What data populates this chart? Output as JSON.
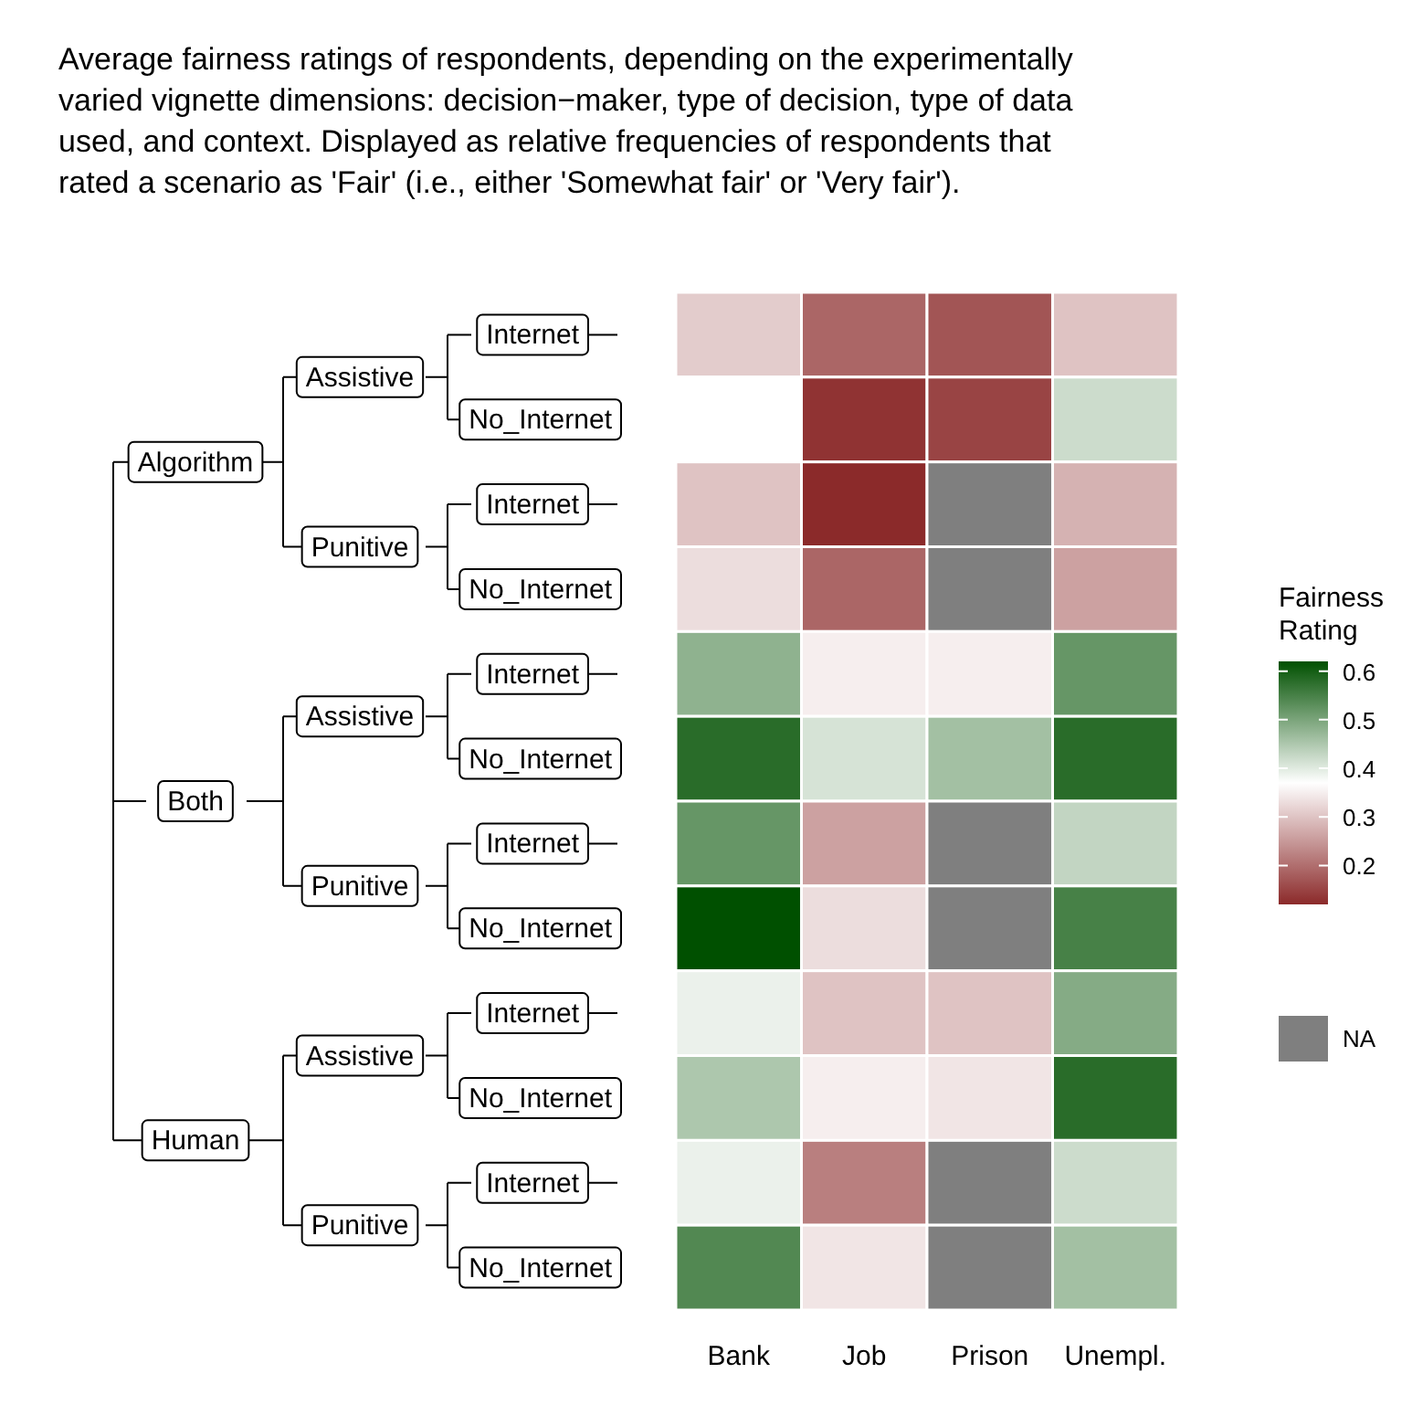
{
  "chart_data": {
    "type": "heatmap",
    "title": "Average fairness ratings of respondents, depending on the experimentally varied vignette dimensions: decision−maker, type of decision, type of data used, and context. Displayed as relative frequencies of respondents that rated a scenario as 'Fair' (i.e., either 'Somewhat fair' or 'Very fair').",
    "categories": [
      "Bank",
      "Job",
      "Prison",
      "Unempl."
    ],
    "y_categories": [
      "Internet",
      "No_Internet",
      "Internet",
      "No_Internet",
      "Internet",
      "No_Internet",
      "Internet",
      "No_Internet",
      "Internet",
      "No_Internet",
      "Internet",
      "No_Internet"
    ],
    "cells": [
      [
        0.31,
        0.19,
        0.17,
        0.3
      ],
      [
        0.37,
        0.13,
        0.15,
        0.42
      ],
      [
        0.3,
        0.12,
        null,
        0.28
      ],
      [
        0.33,
        0.19,
        null,
        0.26
      ],
      [
        0.48,
        0.35,
        0.35,
        0.52
      ],
      [
        0.58,
        0.41,
        0.46,
        0.58
      ],
      [
        0.52,
        0.26,
        null,
        0.43
      ],
      [
        0.62,
        0.33,
        null,
        0.55
      ],
      [
        0.39,
        0.3,
        0.3,
        0.49
      ],
      [
        0.45,
        0.35,
        0.34,
        0.58
      ],
      [
        0.39,
        0.22,
        null,
        0.42
      ],
      [
        0.54,
        0.34,
        null,
        0.46
      ]
    ],
    "clim": [
      0.12,
      0.62
    ],
    "cticks": [
      0.2,
      0.3,
      0.4,
      0.5,
      0.6
    ],
    "colors": [
      "#8b2a2a",
      "#ffffff",
      "#005000"
    ],
    "clabel": "Fairness Rating",
    "annotations": [
      "Algorithm",
      "Assistive",
      "Punitive",
      "Both",
      "Assistive",
      "Punitive",
      "Human",
      "Assistive",
      "Punitive",
      "NA"
    ]
  }
}
